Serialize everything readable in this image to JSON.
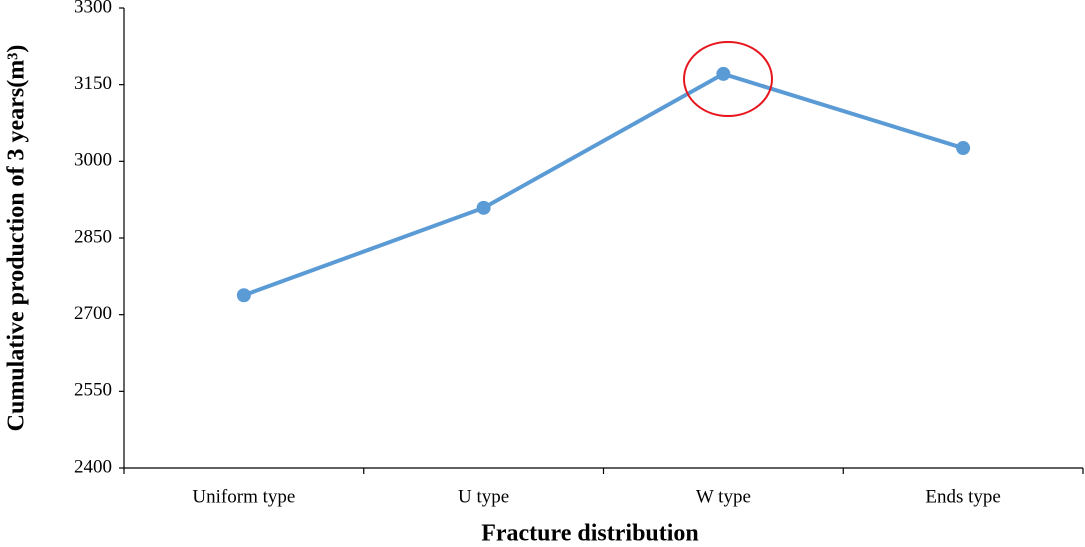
{
  "chart_data": {
    "type": "line",
    "x_label": "Fracture distribution",
    "y_label": "Cumulative production of 3 years(m³)",
    "categories": [
      "Uniform type",
      "U type",
      "W type",
      "Ends type"
    ],
    "series": [
      {
        "name": "Cumulative production",
        "color": "#5b9bd5",
        "values": [
          2738,
          2909,
          3171,
          3026
        ]
      }
    ],
    "ylim": [
      2400,
      3300
    ],
    "yticks": [
      2400,
      2550,
      2700,
      2850,
      3000,
      3150,
      3300
    ],
    "grid": false
  }
}
